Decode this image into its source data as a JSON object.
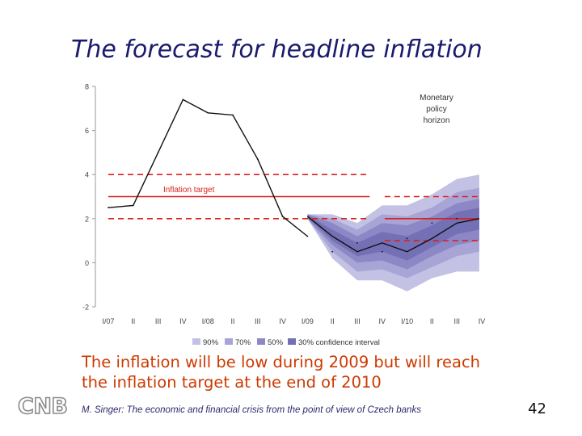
{
  "slide": {
    "title": "The forecast for headline inflation",
    "body_line1": "The inflation will be low during 2009 but will reach",
    "body_line2": "the inflation target at the end of 2010",
    "footer": "M. Singer: The economic and financial crisis from the point of view of Czech banks",
    "page_number": "42",
    "logo_text": "CNB"
  },
  "colors": {
    "band_90": "#c3c1e4",
    "band_70": "#a8a5d6",
    "band_50": "#8c88c6",
    "band_30": "#7470b5",
    "target_line": "#dd1f1f",
    "forecast_line": "#111111",
    "title": "#1a1a6e",
    "body_text": "#cc3a00"
  },
  "chart_data": {
    "type": "area",
    "title": "",
    "xlabel": "",
    "ylabel": "",
    "categories": [
      "I/07",
      "II",
      "III",
      "IV",
      "I/08",
      "II",
      "III",
      "IV",
      "I/09",
      "II",
      "III",
      "IV",
      "I/10",
      "II",
      "III",
      "IV"
    ],
    "ylim": [
      -2,
      8
    ],
    "yticks": [
      -2,
      0,
      2,
      4,
      6,
      8
    ],
    "grid": false,
    "series": [
      {
        "kind": "line",
        "values": [
          2.5,
          2.6,
          5.0,
          7.4,
          6.8,
          6.7,
          4.7,
          2.1,
          1.2,
          0.5,
          0.9,
          0.5,
          1.1,
          1.8,
          2.0,
          null
        ]
      }
    ],
    "forecast_start_index": 8,
    "forecast_points": [
      {
        "x": 8.0,
        "y": 2.1
      },
      {
        "x": 9.0,
        "y": 1.2
      },
      {
        "x": 10.0,
        "y": 0.5
      },
      {
        "x": 11.0,
        "y": 0.9
      },
      {
        "x": 12.0,
        "y": 0.5
      },
      {
        "x": 13.0,
        "y": 1.1
      },
      {
        "x": 14.0,
        "y": 1.8
      },
      {
        "x": 14.9,
        "y": 2.0
      }
    ],
    "fan_chart": {
      "x": [
        8.0,
        9.0,
        10.0,
        11.0,
        12.0,
        13.0,
        14.0,
        14.9
      ],
      "bands": [
        {
          "name": "90%",
          "upper": [
            2.2,
            2.2,
            1.8,
            2.6,
            2.6,
            3.1,
            3.8,
            4.0
          ],
          "lower": [
            2.0,
            0.2,
            -0.8,
            -0.8,
            -1.3,
            -0.7,
            -0.4,
            -0.4
          ]
        },
        {
          "name": "70%",
          "upper": [
            2.2,
            2.0,
            1.5,
            2.2,
            2.1,
            2.5,
            3.2,
            3.4
          ],
          "lower": [
            2.0,
            0.5,
            -0.4,
            -0.3,
            -0.7,
            -0.2,
            0.3,
            0.5
          ]
        },
        {
          "name": "50%",
          "upper": [
            2.2,
            1.8,
            1.2,
            1.8,
            1.7,
            2.1,
            2.7,
            2.9
          ],
          "lower": [
            2.0,
            0.8,
            0.0,
            0.1,
            -0.3,
            0.3,
            0.8,
            1.0
          ]
        },
        {
          "name": "30%",
          "upper": [
            2.15,
            1.5,
            0.9,
            1.4,
            1.2,
            1.7,
            2.3,
            2.5
          ],
          "lower": [
            2.05,
            1.0,
            0.3,
            0.5,
            0.1,
            0.7,
            1.3,
            1.5
          ]
        }
      ]
    },
    "inflation_target": {
      "label": "Inflation target",
      "segments": [
        {
          "x_from": 0.0,
          "x_to": 10.5,
          "center": 3.0,
          "upper": 4.0,
          "lower": 2.0
        },
        {
          "x_from": 11.1,
          "x_to": 14.9,
          "center": 2.0,
          "upper": 3.0,
          "lower": 1.0
        }
      ]
    },
    "annotations": [
      {
        "text_lines": [
          "Monetary",
          "policy",
          "horizon"
        ],
        "x": 13.0,
        "y": 7.2
      }
    ],
    "legend": {
      "placement": "bottom",
      "entries": [
        "90%",
        "70%",
        "50%",
        "30% confidence interval"
      ]
    }
  }
}
